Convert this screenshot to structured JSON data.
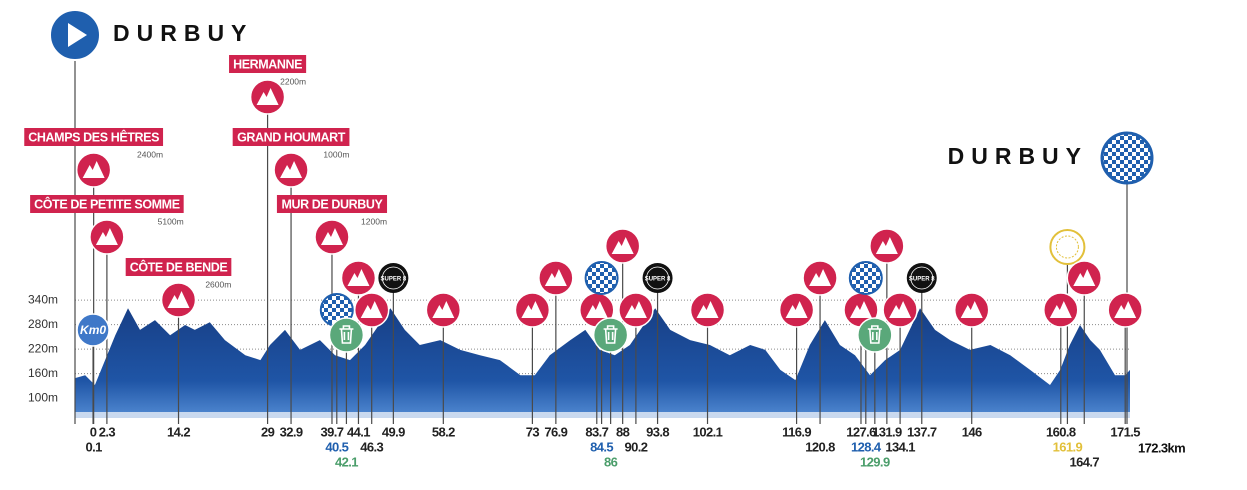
{
  "chart_data": {
    "type": "area",
    "xlim": [
      -3,
      172.3
    ],
    "ylim": [
      66,
      400
    ],
    "yticks": [
      {
        "value": 340,
        "label": "340m"
      },
      {
        "value": 280,
        "label": "280m"
      },
      {
        "value": 220,
        "label": "220m"
      },
      {
        "value": 160,
        "label": "160m"
      },
      {
        "value": 100,
        "label": "100m"
      }
    ],
    "grid": true,
    "color": "#1d4f9c",
    "x": [
      -3.0,
      -1.3,
      0.3,
      2.0,
      3.7,
      5.8,
      7.8,
      10.3,
      12.8,
      15.3,
      16.9,
      19.4,
      21.9,
      25.3,
      27.8,
      29.4,
      31.9,
      34.4,
      37.7,
      40.2,
      42.7,
      45.2,
      49.4,
      51.8,
      54.3,
      57.7,
      61.0,
      64.3,
      67.6,
      71.0,
      73.4,
      75.9,
      79.3,
      81.8,
      84.2,
      86.7,
      89.2,
      93.4,
      95.9,
      99.2,
      102.5,
      105.8,
      109.2,
      111.7,
      114.2,
      116.7,
      119.1,
      121.6,
      124.1,
      126.6,
      129.1,
      131.6,
      134.1,
      137.4,
      139.9,
      142.4,
      145.7,
      149.1,
      152.4,
      155.7,
      159.0,
      160.7,
      162.3,
      164.0,
      165.7,
      167.3,
      169.8,
      171.5,
      172.3
    ],
    "values": [
      149,
      156,
      132,
      193,
      254,
      320,
      267,
      291,
      254,
      279,
      267,
      286,
      242,
      205,
      193,
      230,
      267,
      218,
      242,
      205,
      193,
      230,
      320,
      267,
      230,
      242,
      218,
      205,
      193,
      156,
      156,
      205,
      242,
      267,
      218,
      205,
      230,
      320,
      267,
      242,
      230,
      205,
      230,
      218,
      169,
      144,
      230,
      291,
      230,
      205,
      156,
      193,
      218,
      320,
      267,
      242,
      218,
      230,
      205,
      169,
      132,
      169,
      230,
      279,
      242,
      218,
      156,
      156,
      169
    ],
    "start": {
      "name": "DURBUY"
    },
    "finish": {
      "name": "DURBUY"
    },
    "distance": {
      "value": 172.3,
      "label": "172.3km"
    },
    "icon_texts": {
      "km0": "Km0",
      "super8": "SUPER 8"
    },
    "type_colors": {
      "climb": "#d0234e",
      "sprint": "#1f5fae",
      "feed": "#5aa87a",
      "super8": "#111111",
      "time": "#e2c03a",
      "km0": "#3f78c8"
    },
    "label_colors": {
      "climb": "#222222",
      "sprint": "#1f5fae",
      "feed": "#4a9d6a",
      "super8": "#222222",
      "time": "#e2c03a",
      "km0": "#222222"
    },
    "climbs": [
      {
        "name": "CÔTE DE BENDE",
        "length": "2600m",
        "km": 14.2
      },
      {
        "name": "CÔTE DE PETITE SOMME",
        "length": "5100m",
        "km": 2.3
      },
      {
        "name": "CHAMPS DES HÊTRES",
        "length": "2400m",
        "km": 0.1
      },
      {
        "name": "MUR DE DURBUY",
        "length": "1200m",
        "km": 39.7
      },
      {
        "name": "GRAND HOUMART",
        "length": "1000m",
        "km": 32.9
      },
      {
        "name": "HERMANNE",
        "length": "2200m",
        "km": 29
      }
    ],
    "markers": [
      {
        "km": 0,
        "type": "km0"
      },
      {
        "km": 40.5,
        "type": "sprint"
      },
      {
        "km": 42.1,
        "type": "feed"
      },
      {
        "km": 44.1,
        "type": "climb"
      },
      {
        "km": 46.3,
        "type": "climb"
      },
      {
        "km": 49.9,
        "type": "super8"
      },
      {
        "km": 58.2,
        "type": "climb"
      },
      {
        "km": 73,
        "type": "climb"
      },
      {
        "km": 76.9,
        "type": "climb"
      },
      {
        "km": 83.7,
        "type": "climb"
      },
      {
        "km": 84.5,
        "type": "sprint"
      },
      {
        "km": 86,
        "type": "feed"
      },
      {
        "km": 88,
        "type": "climb"
      },
      {
        "km": 90.2,
        "type": "climb"
      },
      {
        "km": 93.8,
        "type": "super8"
      },
      {
        "km": 102.1,
        "type": "climb"
      },
      {
        "km": 116.9,
        "type": "climb"
      },
      {
        "km": 120.8,
        "type": "climb"
      },
      {
        "km": 127.6,
        "type": "climb"
      },
      {
        "km": 128.4,
        "type": "sprint"
      },
      {
        "km": 129.9,
        "type": "feed"
      },
      {
        "km": 131.9,
        "type": "climb"
      },
      {
        "km": 134.1,
        "type": "climb"
      },
      {
        "km": 137.7,
        "type": "super8"
      },
      {
        "km": 146,
        "type": "climb"
      },
      {
        "km": 160.8,
        "type": "climb"
      },
      {
        "km": 161.9,
        "type": "time"
      },
      {
        "km": 164.7,
        "type": "climb"
      },
      {
        "km": 171.5,
        "type": "climb"
      }
    ]
  }
}
